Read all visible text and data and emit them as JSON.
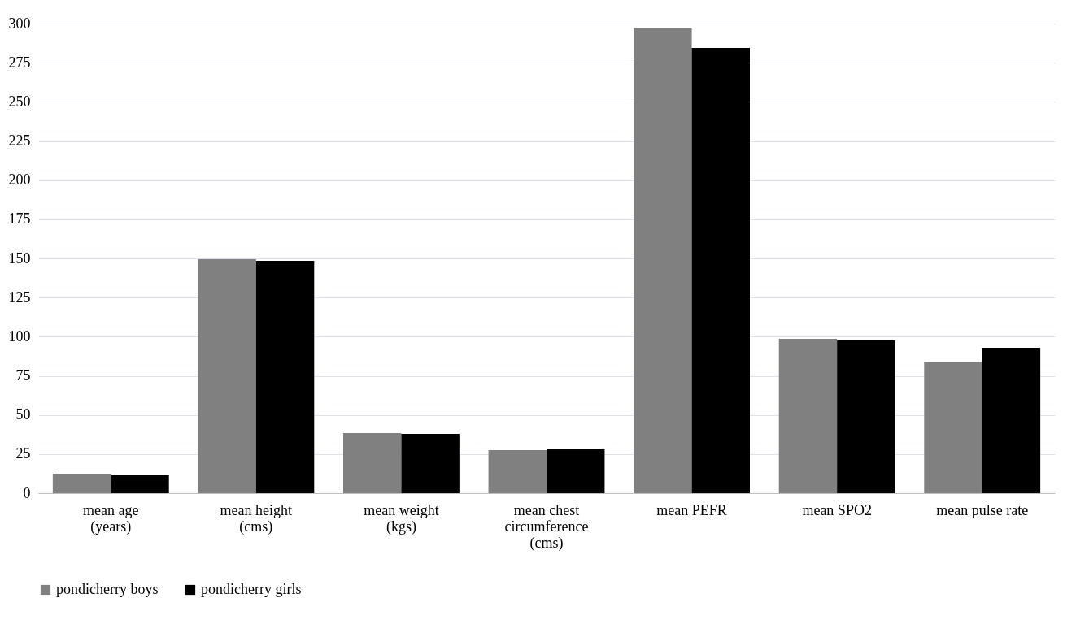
{
  "chart_data": {
    "type": "bar",
    "categories": [
      "mean age (years)",
      "mean height (cms)",
      "mean weight (kgs)",
      "mean chest circumference (cms)",
      "mean PEFR",
      "mean SPO2",
      "mean pulse rate"
    ],
    "series": [
      {
        "name": "pondicherry boys",
        "color": "#808080",
        "values": [
          12.5,
          149.5,
          38.4,
          27.5,
          297.4,
          98.6,
          83.6
        ]
      },
      {
        "name": "pondicherry girls",
        "color": "#000000",
        "values": [
          11.4,
          148.4,
          37.9,
          28,
          284.4,
          97.6,
          92.9
        ]
      }
    ],
    "ylim": [
      0,
      300
    ],
    "yticks": [
      0,
      25,
      50,
      75,
      100,
      125,
      150,
      175,
      200,
      225,
      250,
      275,
      300
    ],
    "grid": "y",
    "legend": "bottom"
  }
}
